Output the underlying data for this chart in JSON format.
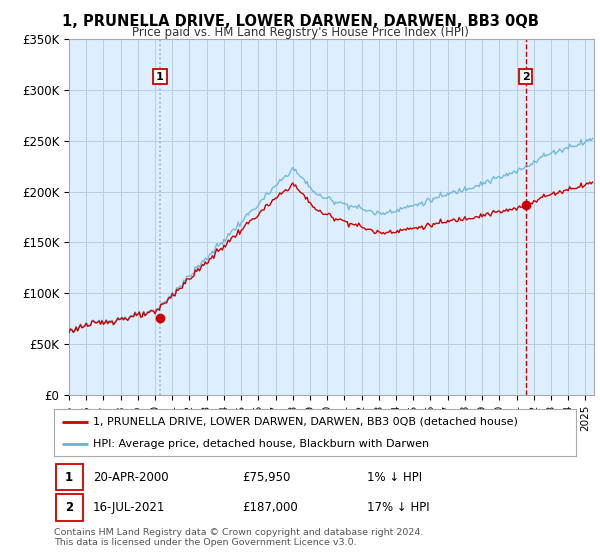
{
  "title": "1, PRUNELLA DRIVE, LOWER DARWEN, DARWEN, BB3 0QB",
  "subtitle": "Price paid vs. HM Land Registry's House Price Index (HPI)",
  "ylim": [
    0,
    350000
  ],
  "yticks": [
    0,
    50000,
    100000,
    150000,
    200000,
    250000,
    300000,
    350000
  ],
  "ytick_labels": [
    "£0",
    "£50K",
    "£100K",
    "£150K",
    "£200K",
    "£250K",
    "£300K",
    "£350K"
  ],
  "sale1_date_num": 2000.29,
  "sale1_price": 75950,
  "sale1_label": "1",
  "sale2_date_num": 2021.54,
  "sale2_price": 187000,
  "sale2_label": "2",
  "hpi_color": "#6bb3d6",
  "sale_color": "#cc0000",
  "vline1_color": "#aaaaaa",
  "vline1_style": "dotted",
  "vline2_color": "#cc0000",
  "vline2_style": "dashed",
  "chart_bg": "#ddeeff",
  "legend_sale_label": "1, PRUNELLA DRIVE, LOWER DARWEN, DARWEN, BB3 0QB (detached house)",
  "legend_hpi_label": "HPI: Average price, detached house, Blackburn with Darwen",
  "footer": "Contains HM Land Registry data © Crown copyright and database right 2024.\nThis data is licensed under the Open Government Licence v3.0.",
  "background_color": "#ffffff",
  "grid_color": "#bbccdd"
}
